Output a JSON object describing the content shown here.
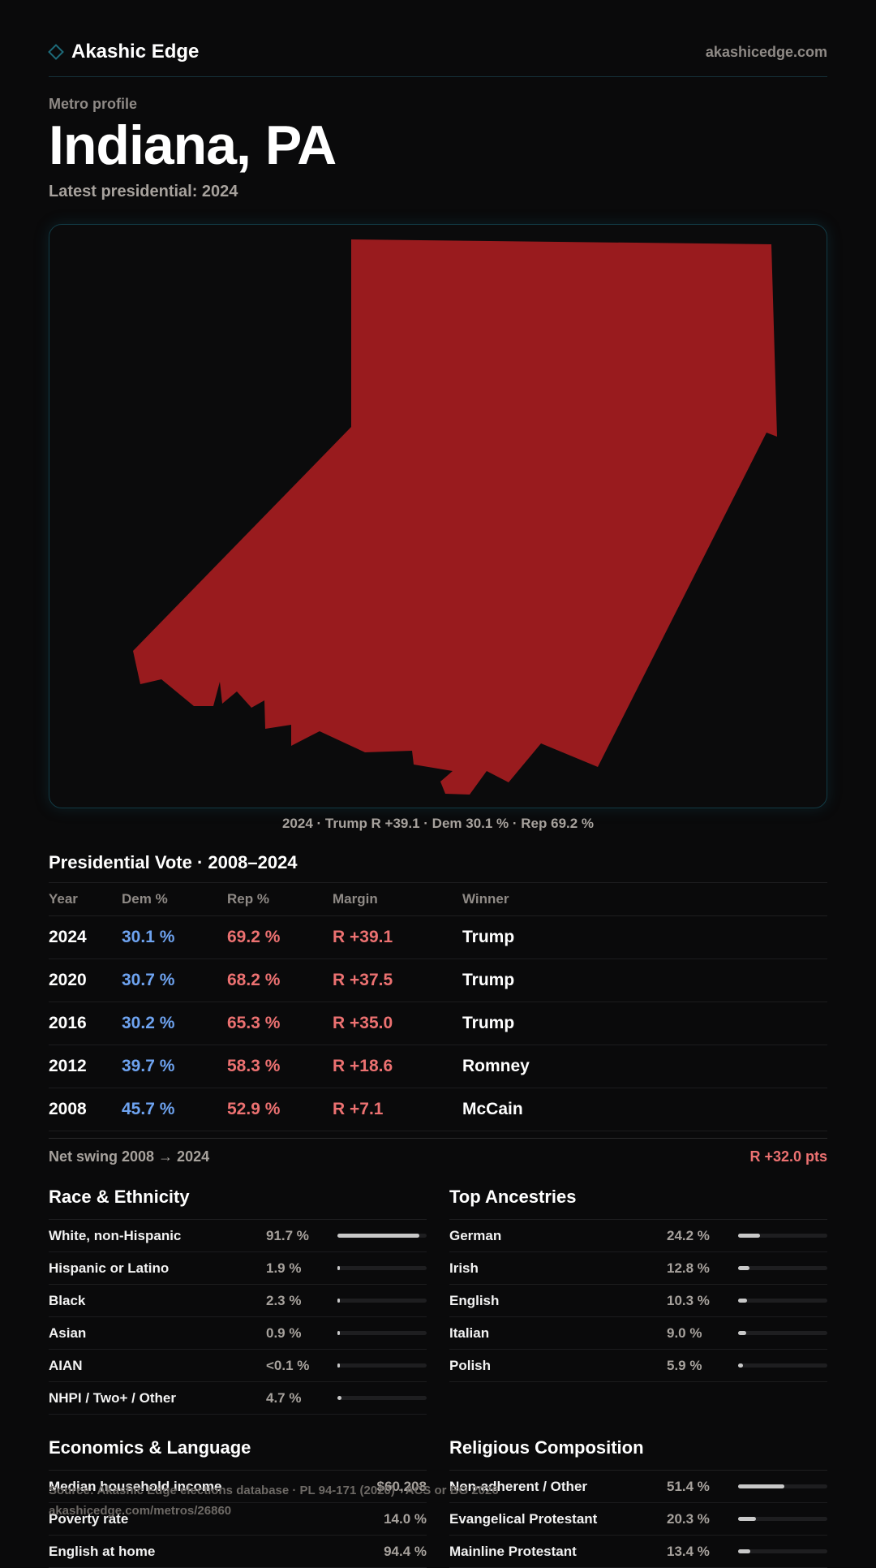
{
  "header": {
    "brand": "Akashic Edge",
    "site": "akashicedge.com"
  },
  "page": {
    "eyebrow": "Metro profile",
    "title": "Indiana, PA",
    "subtitle": "Latest presidential: 2024"
  },
  "map": {
    "fill_color": "#991b1e",
    "caption": "2024 · Trump R +39.1 · Dem 30.1 % · Rep 69.2 %"
  },
  "votes": {
    "title": "Presidential Vote · 2008–2024",
    "headers": {
      "year": "Year",
      "dem": "Dem %",
      "rep": "Rep %",
      "margin": "Margin",
      "winner": "Winner"
    },
    "rows": [
      {
        "year": "2024",
        "dem": "30.1 %",
        "rep": "69.2 %",
        "margin": "R +39.1",
        "winner": "Trump"
      },
      {
        "year": "2020",
        "dem": "30.7 %",
        "rep": "68.2 %",
        "margin": "R +37.5",
        "winner": "Trump"
      },
      {
        "year": "2016",
        "dem": "30.2 %",
        "rep": "65.3 %",
        "margin": "R +35.0",
        "winner": "Trump"
      },
      {
        "year": "2012",
        "dem": "39.7 %",
        "rep": "58.3 %",
        "margin": "R +18.6",
        "winner": "Romney"
      },
      {
        "year": "2008",
        "dem": "45.7 %",
        "rep": "52.9 %",
        "margin": "R +7.1",
        "winner": "McCain"
      }
    ],
    "swing_label": "Net swing 2008 → 2024",
    "swing_value": "R +32.0 pts"
  },
  "race": {
    "title": "Race & Ethnicity",
    "rows": [
      {
        "label": "White, non-Hispanic",
        "value": "91.7 %",
        "pct": 91.7
      },
      {
        "label": "Hispanic or Latino",
        "value": "1.9 %",
        "pct": 1.9
      },
      {
        "label": "Black",
        "value": "2.3 %",
        "pct": 2.3
      },
      {
        "label": "Asian",
        "value": "0.9 %",
        "pct": 0.9
      },
      {
        "label": "AIAN",
        "value": "<0.1 %",
        "pct": 0
      },
      {
        "label": "NHPI / Two+ / Other",
        "value": "4.7 %",
        "pct": 4.7
      }
    ]
  },
  "ancestry": {
    "title": "Top Ancestries",
    "rows": [
      {
        "label": "German",
        "value": "24.2 %",
        "pct": 24.2
      },
      {
        "label": "Irish",
        "value": "12.8 %",
        "pct": 12.8
      },
      {
        "label": "English",
        "value": "10.3 %",
        "pct": 10.3
      },
      {
        "label": "Italian",
        "value": "9.0 %",
        "pct": 9.0
      },
      {
        "label": "Polish",
        "value": "5.9 %",
        "pct": 5.9
      }
    ]
  },
  "economics": {
    "title": "Economics & Language",
    "rows": [
      {
        "label": "Median household income",
        "value": "$60,208"
      },
      {
        "label": "Poverty rate",
        "value": "14.0 %"
      },
      {
        "label": "English at home",
        "value": "94.4 %"
      }
    ]
  },
  "religion": {
    "title": "Religious Composition",
    "rows": [
      {
        "label": "Non-adherent / Other",
        "value": "51.4 %",
        "pct": 51.4
      },
      {
        "label": "Evangelical Protestant",
        "value": "20.3 %",
        "pct": 20.3
      },
      {
        "label": "Mainline Protestant",
        "value": "13.4 %",
        "pct": 13.4
      }
    ]
  },
  "footer": {
    "source": "Source: Akashic Edge elections database · PL 94-171 (2020) · ACS or BG 2026",
    "url": "akashicedge.com/metros/26860"
  }
}
